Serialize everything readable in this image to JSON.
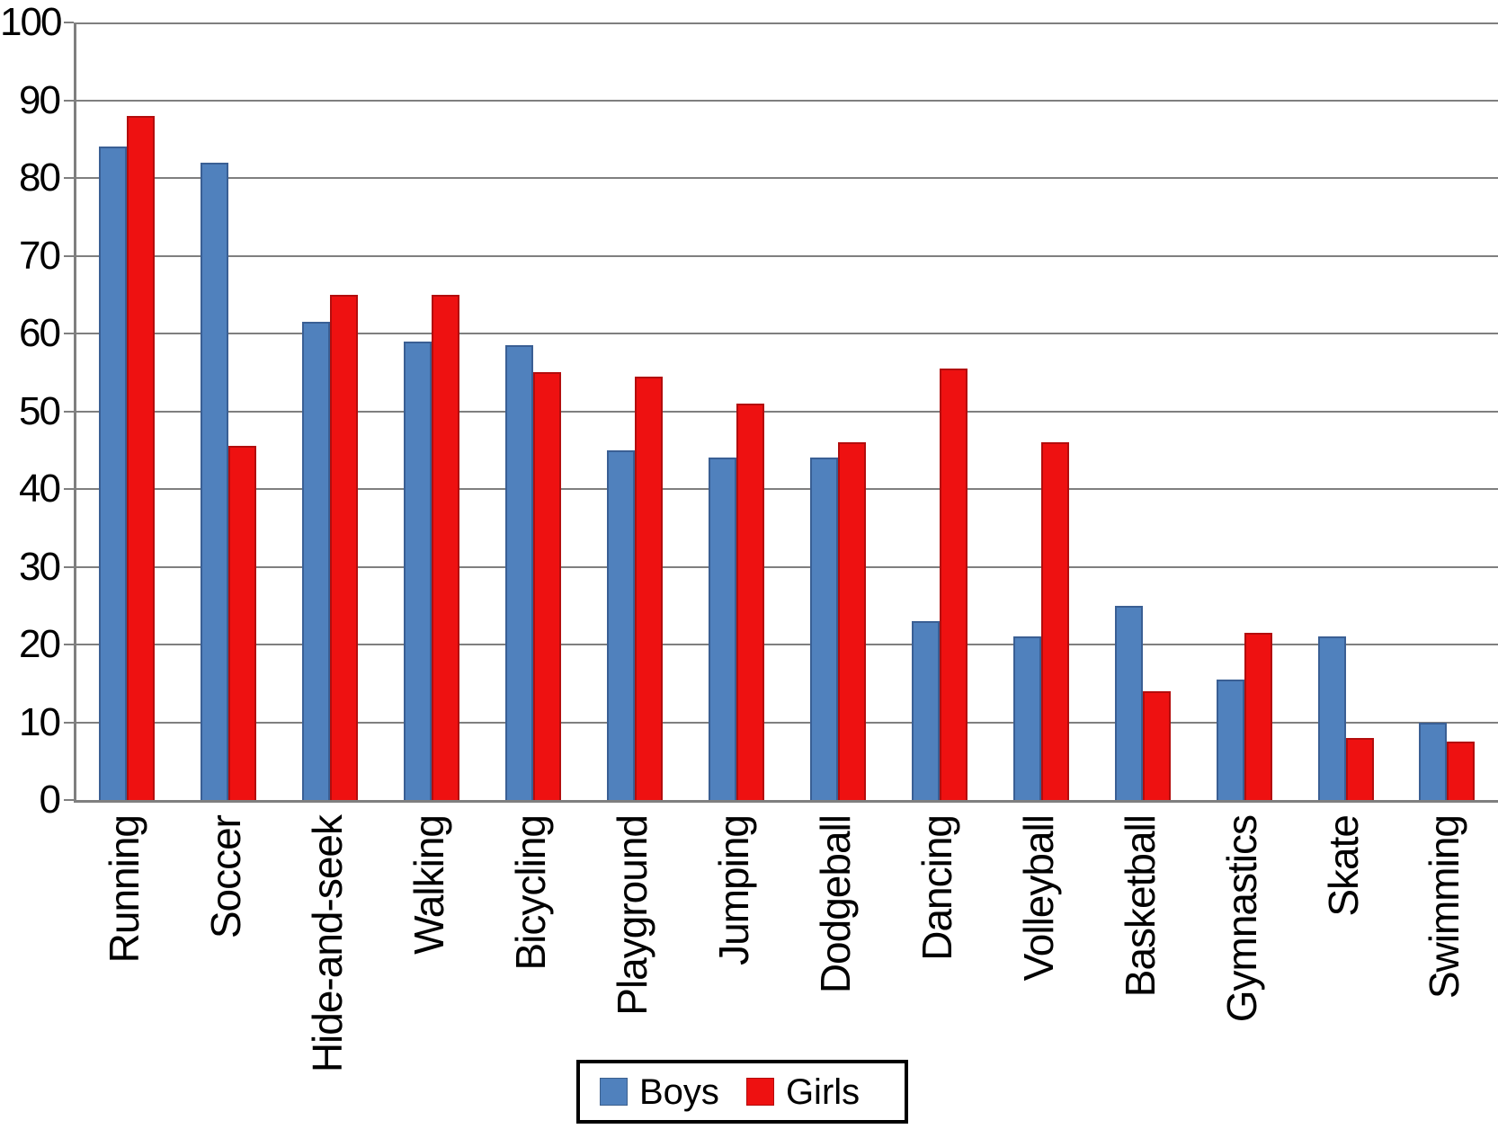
{
  "chart_data": {
    "type": "bar",
    "categories": [
      "Running",
      "Soccer",
      "Hide-and-seek",
      "Walking",
      "Bicycling",
      "Playground",
      "Jumping",
      "Dodgeball",
      "Dancing",
      "Volleyball",
      "Basketball",
      "Gymnastics",
      "Skate",
      "Swimming"
    ],
    "series": [
      {
        "name": "Boys",
        "color": "#5081BD",
        "border_color": "#3A5F94",
        "values": [
          84,
          82,
          61.5,
          59,
          58.5,
          45,
          44,
          44,
          23,
          21,
          25,
          15.5,
          21,
          10
        ]
      },
      {
        "name": "Girls",
        "color": "#EE1111",
        "border_color": "#B30D0D",
        "values": [
          88,
          45.5,
          65,
          65,
          55,
          54.5,
          51,
          46,
          55.5,
          46,
          14,
          21.5,
          8,
          7.5
        ]
      }
    ],
    "title": "",
    "xlabel": "",
    "ylabel": "",
    "ylim": [
      0,
      100
    ],
    "ytick_step": 10,
    "ytick_labels": [
      "0",
      "10",
      "20",
      "30",
      "40",
      "50",
      "60",
      "70",
      "80",
      "90",
      "100"
    ],
    "grid": true,
    "gridline_color": "#7f7f7f",
    "axis_color": "#7f7f7f",
    "legend_position": "bottom-center"
  },
  "legend": {
    "items": [
      {
        "label": "Boys",
        "color": "#5081BD"
      },
      {
        "label": "Girls",
        "color": "#EE1111"
      }
    ]
  }
}
